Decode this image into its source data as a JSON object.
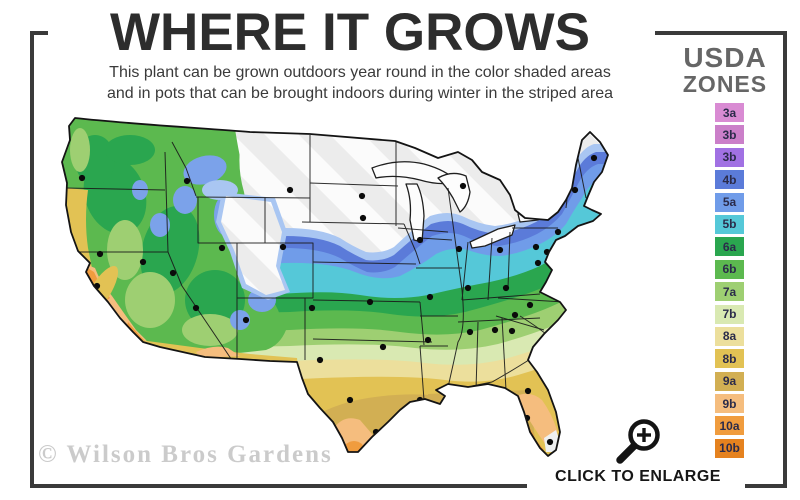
{
  "header": {
    "title": "WHERE IT GROWS",
    "subtitle_line1": "This plant can be grown outdoors year round in the color shaded areas",
    "subtitle_line2": "and in pots that can be brought indoors during winter in the striped area"
  },
  "legend": {
    "title_line1": "USDA",
    "title_line2": "ZONES",
    "zones": [
      {
        "label": "3a",
        "color": "#d98bd3"
      },
      {
        "label": "3b",
        "color": "#cb7fc9"
      },
      {
        "label": "3b",
        "color": "#a171e3"
      },
      {
        "label": "4b",
        "color": "#5b7bd9"
      },
      {
        "label": "5a",
        "color": "#709ce9"
      },
      {
        "label": "5b",
        "color": "#55c8d8"
      },
      {
        "label": "6a",
        "color": "#2aa64f"
      },
      {
        "label": "6b",
        "color": "#5cb94f"
      },
      {
        "label": "7a",
        "color": "#9ecf72"
      },
      {
        "label": "7b",
        "color": "#d9e9b2"
      },
      {
        "label": "8a",
        "color": "#ecdf9c"
      },
      {
        "label": "8b",
        "color": "#e2c254"
      },
      {
        "label": "9a",
        "color": "#d2af53"
      },
      {
        "label": "9b",
        "color": "#f5bd7e"
      },
      {
        "label": "10a",
        "color": "#f09c3e"
      },
      {
        "label": "10b",
        "color": "#e5821f"
      }
    ]
  },
  "map": {
    "stripe_base_color": "#ececec",
    "stripe_highlight_color": "#fbfbfb",
    "outline_color": "#1a1a1a",
    "fringe_blue_color": "#a9c6f2",
    "city_dots": [
      [
        82,
        178
      ],
      [
        187,
        181
      ],
      [
        290,
        190
      ],
      [
        362,
        196
      ],
      [
        463,
        186
      ],
      [
        520,
        197
      ],
      [
        540,
        210
      ],
      [
        594,
        158
      ],
      [
        575,
        190
      ],
      [
        100,
        254
      ],
      [
        143,
        262
      ],
      [
        173,
        273
      ],
      [
        222,
        248
      ],
      [
        283,
        247
      ],
      [
        363,
        218
      ],
      [
        420,
        240
      ],
      [
        459,
        249
      ],
      [
        500,
        250
      ],
      [
        536,
        247
      ],
      [
        558,
        232
      ],
      [
        590,
        205
      ],
      [
        75,
        291
      ],
      [
        97,
        286
      ],
      [
        196,
        308
      ],
      [
        246,
        320
      ],
      [
        312,
        308
      ],
      [
        370,
        302
      ],
      [
        430,
        297
      ],
      [
        468,
        288
      ],
      [
        506,
        288
      ],
      [
        547,
        252
      ],
      [
        538,
        263
      ],
      [
        113,
        346
      ],
      [
        131,
        365
      ],
      [
        240,
        387
      ],
      [
        320,
        360
      ],
      [
        383,
        347
      ],
      [
        428,
        340
      ],
      [
        470,
        332
      ],
      [
        512,
        331
      ],
      [
        548,
        292
      ],
      [
        530,
        305
      ],
      [
        515,
        315
      ],
      [
        495,
        330
      ],
      [
        350,
        400
      ],
      [
        398,
        416
      ],
      [
        420,
        400
      ],
      [
        456,
        403
      ],
      [
        492,
        399
      ],
      [
        528,
        391
      ],
      [
        560,
        363
      ],
      [
        376,
        432
      ],
      [
        416,
        441
      ],
      [
        527,
        418
      ],
      [
        550,
        442
      ]
    ]
  },
  "footer": {
    "watermark": "© Wilson Bros Gardens",
    "enlarge_label": "CLICK TO ENLARGE",
    "magnifier_icon": "magnifying-glass-plus"
  },
  "frame_color": "#3a3a3a"
}
